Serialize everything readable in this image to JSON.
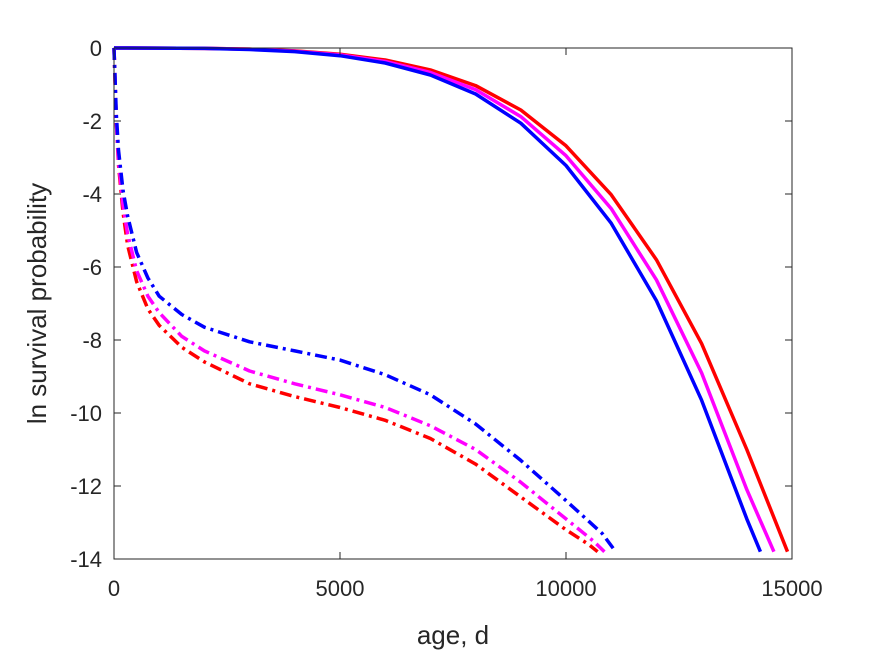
{
  "chart_data": {
    "type": "line",
    "title": "",
    "xlabel": "age, d",
    "ylabel": "ln survival probability",
    "xlim": [
      0,
      15000
    ],
    "ylim": [
      -14,
      0
    ],
    "xticks": [
      0,
      5000,
      10000,
      15000
    ],
    "yticks": [
      0,
      -2,
      -4,
      -6,
      -8,
      -10,
      -12,
      -14
    ],
    "grid": false,
    "legend": "none",
    "series": [
      {
        "color": "#ff0000",
        "style": "solid",
        "x": [
          0,
          2000,
          3000,
          4000,
          5000,
          6000,
          7000,
          8000,
          9000,
          10000,
          11000,
          12000,
          13000,
          14000,
          14900
        ],
        "y": [
          0,
          -0.01,
          -0.03,
          -0.08,
          -0.17,
          -0.33,
          -0.6,
          -1.03,
          -1.7,
          -2.68,
          -4.02,
          -5.8,
          -8.1,
          -11.0,
          -13.8
        ]
      },
      {
        "color": "#ff00ff",
        "style": "solid",
        "x": [
          0,
          2000,
          3000,
          4000,
          5000,
          6000,
          7000,
          8000,
          9000,
          10000,
          11000,
          12000,
          13000,
          14000,
          14600
        ],
        "y": [
          0,
          -0.01,
          -0.03,
          -0.09,
          -0.19,
          -0.37,
          -0.67,
          -1.14,
          -1.88,
          -2.95,
          -4.4,
          -6.35,
          -8.9,
          -12.1,
          -13.8
        ]
      },
      {
        "color": "#0000ff",
        "style": "solid",
        "x": [
          0,
          2000,
          3000,
          4000,
          5000,
          6000,
          7000,
          8000,
          9000,
          10000,
          11000,
          12000,
          13000,
          14000,
          14300
        ],
        "y": [
          0,
          -0.01,
          -0.04,
          -0.1,
          -0.21,
          -0.41,
          -0.74,
          -1.26,
          -2.06,
          -3.22,
          -4.8,
          -6.92,
          -9.65,
          -12.9,
          -13.8
        ]
      },
      {
        "color": "#ff0000",
        "style": "dashdot",
        "x": [
          0,
          50,
          100,
          200,
          300,
          500,
          750,
          1000,
          1500,
          2000,
          3000,
          4000,
          5000,
          6000,
          7000,
          8000,
          9000,
          10000,
          10500,
          10700
        ],
        "y": [
          0,
          -2.0,
          -3.2,
          -4.5,
          -5.4,
          -6.4,
          -7.15,
          -7.6,
          -8.2,
          -8.6,
          -9.2,
          -9.55,
          -9.85,
          -10.2,
          -10.7,
          -11.4,
          -12.3,
          -13.2,
          -13.6,
          -13.8
        ]
      },
      {
        "color": "#ff00ff",
        "style": "dashdot",
        "x": [
          0,
          50,
          100,
          200,
          300,
          500,
          750,
          1000,
          1500,
          2000,
          3000,
          4000,
          5000,
          6000,
          7000,
          8000,
          9000,
          10000,
          10600,
          10850
        ],
        "y": [
          0,
          -2.0,
          -3.1,
          -4.3,
          -5.1,
          -6.1,
          -6.8,
          -7.25,
          -7.9,
          -8.3,
          -8.85,
          -9.2,
          -9.5,
          -9.85,
          -10.35,
          -11.0,
          -11.9,
          -12.9,
          -13.5,
          -13.8
        ]
      },
      {
        "color": "#0000ff",
        "style": "dashdot",
        "x": [
          0,
          50,
          100,
          200,
          300,
          500,
          750,
          1000,
          1500,
          2000,
          3000,
          4000,
          5000,
          6000,
          7000,
          8000,
          9000,
          10000,
          10800,
          11100
        ],
        "y": [
          0,
          -1.8,
          -2.8,
          -3.9,
          -4.6,
          -5.6,
          -6.3,
          -6.8,
          -7.3,
          -7.65,
          -8.05,
          -8.3,
          -8.55,
          -8.95,
          -9.5,
          -10.3,
          -11.3,
          -12.4,
          -13.3,
          -13.8
        ]
      }
    ]
  }
}
